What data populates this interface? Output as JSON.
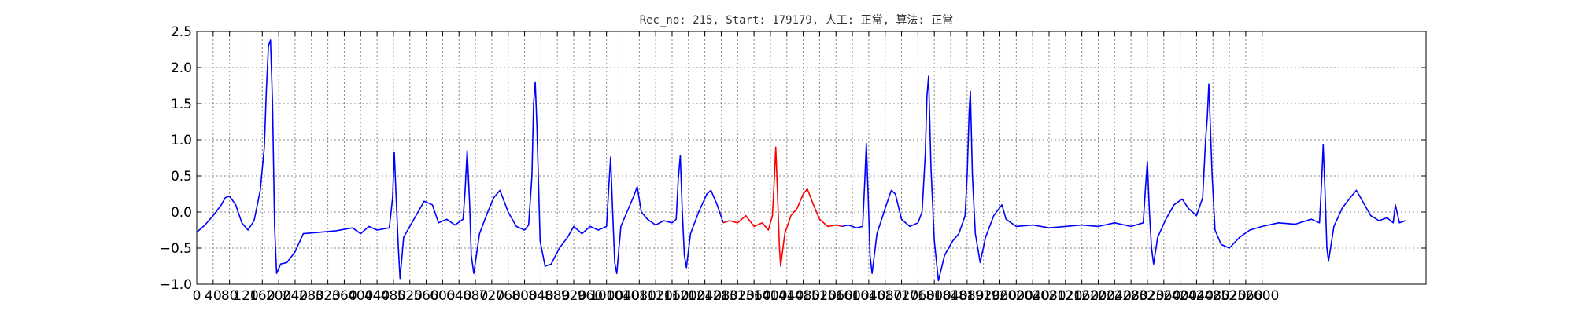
{
  "chart_data": {
    "type": "line",
    "title": "Rec_no: 215, Start: 179179, 人工: 正常, 算法: 正常",
    "xlabel": "",
    "ylabel": "",
    "xlim": [
      0,
      3000
    ],
    "ylim": [
      -1.0,
      2.5
    ],
    "grid": true,
    "yticks": [
      2.5,
      2.0,
      1.5,
      1.0,
      0.5,
      0.0,
      -0.5,
      -1.0
    ],
    "ytick_labels": [
      "2.5",
      "2.0",
      "1.5",
      "1.0",
      "0.5",
      "0.0",
      "−0.5",
      "−1.0"
    ],
    "xticks": [
      0,
      40,
      80,
      120,
      160,
      200,
      240,
      280,
      320,
      360,
      400,
      440,
      480,
      520,
      560,
      600,
      640,
      680,
      720,
      760,
      800,
      840,
      880,
      920,
      960,
      1000,
      1040,
      1080,
      1120,
      1160,
      1200,
      1240,
      1280,
      1320,
      1360,
      1400,
      1440,
      1480,
      1520,
      1560,
      1600,
      1640,
      1680,
      1720,
      1760,
      1800,
      1840,
      1880,
      1920,
      1960,
      2000,
      2040,
      2080,
      2120,
      2160,
      2200,
      2240,
      2280,
      2320,
      2360,
      2400,
      2440,
      2480,
      2520,
      2560,
      2600
    ],
    "series": [
      {
        "color": "#0000ff",
        "points": [
          [
            0,
            -0.28
          ],
          [
            20,
            -0.18
          ],
          [
            40,
            -0.05
          ],
          [
            60,
            0.1
          ],
          [
            70,
            0.2
          ],
          [
            80,
            0.22
          ],
          [
            95,
            0.1
          ],
          [
            110,
            -0.15
          ],
          [
            125,
            -0.25
          ],
          [
            140,
            -0.12
          ],
          [
            155,
            0.3
          ],
          [
            165,
            0.9
          ],
          [
            170,
            1.7
          ],
          [
            175,
            2.3
          ],
          [
            180,
            2.38
          ],
          [
            185,
            1.5
          ],
          [
            190,
            -0.2
          ],
          [
            195,
            -0.85
          ],
          [
            205,
            -0.72
          ],
          [
            220,
            -0.7
          ],
          [
            240,
            -0.55
          ],
          [
            260,
            -0.3
          ],
          [
            300,
            -0.28
          ],
          [
            340,
            -0.26
          ],
          [
            380,
            -0.22
          ],
          [
            400,
            -0.3
          ],
          [
            420,
            -0.2
          ],
          [
            440,
            -0.25
          ],
          [
            470,
            -0.22
          ],
          [
            478,
            0.2
          ],
          [
            482,
            0.83
          ],
          [
            486,
            0.3
          ],
          [
            492,
            -0.5
          ],
          [
            496,
            -0.92
          ],
          [
            505,
            -0.35
          ],
          [
            520,
            -0.2
          ],
          [
            540,
            0.0
          ],
          [
            555,
            0.15
          ],
          [
            575,
            0.1
          ],
          [
            590,
            -0.15
          ],
          [
            610,
            -0.1
          ],
          [
            630,
            -0.18
          ],
          [
            650,
            -0.1
          ],
          [
            655,
            0.3
          ],
          [
            660,
            0.85
          ],
          [
            666,
            0.1
          ],
          [
            670,
            -0.6
          ],
          [
            676,
            -0.85
          ],
          [
            690,
            -0.3
          ],
          [
            710,
            0.0
          ],
          [
            725,
            0.2
          ],
          [
            740,
            0.3
          ],
          [
            760,
            0.0
          ],
          [
            780,
            -0.2
          ],
          [
            800,
            -0.25
          ],
          [
            810,
            -0.18
          ],
          [
            818,
            0.5
          ],
          [
            822,
            1.5
          ],
          [
            826,
            1.8
          ],
          [
            830,
            1.2
          ],
          [
            838,
            -0.4
          ],
          [
            850,
            -0.75
          ],
          [
            865,
            -0.72
          ],
          [
            885,
            -0.5
          ],
          [
            905,
            -0.35
          ],
          [
            920,
            -0.2
          ],
          [
            940,
            -0.3
          ],
          [
            960,
            -0.2
          ],
          [
            980,
            -0.25
          ],
          [
            1000,
            -0.2
          ],
          [
            1005,
            0.3
          ],
          [
            1010,
            0.76
          ],
          [
            1015,
            0.0
          ],
          [
            1020,
            -0.7
          ],
          [
            1025,
            -0.85
          ],
          [
            1035,
            -0.2
          ],
          [
            1050,
            0.0
          ],
          [
            1065,
            0.2
          ],
          [
            1075,
            0.35
          ],
          [
            1085,
            0.0
          ],
          [
            1100,
            -0.1
          ],
          [
            1120,
            -0.18
          ],
          [
            1140,
            -0.12
          ],
          [
            1160,
            -0.15
          ],
          [
            1170,
            -0.1
          ],
          [
            1175,
            0.45
          ],
          [
            1180,
            0.78
          ],
          [
            1185,
            0.0
          ],
          [
            1190,
            -0.6
          ],
          [
            1195,
            -0.77
          ],
          [
            1205,
            -0.3
          ],
          [
            1225,
            0.0
          ],
          [
            1245,
            0.25
          ],
          [
            1255,
            0.3
          ],
          [
            1270,
            0.1
          ],
          [
            1285,
            -0.15
          ]
        ]
      },
      {
        "color": "#ff0000",
        "points": [
          [
            1285,
            -0.15
          ],
          [
            1300,
            -0.12
          ],
          [
            1320,
            -0.15
          ],
          [
            1340,
            -0.05
          ],
          [
            1360,
            -0.2
          ],
          [
            1380,
            -0.15
          ],
          [
            1395,
            -0.25
          ],
          [
            1405,
            -0.05
          ],
          [
            1410,
            0.5
          ],
          [
            1413,
            0.9
          ],
          [
            1417,
            0.3
          ],
          [
            1422,
            -0.5
          ],
          [
            1425,
            -0.75
          ],
          [
            1435,
            -0.3
          ],
          [
            1450,
            -0.05
          ],
          [
            1465,
            0.05
          ],
          [
            1480,
            0.25
          ],
          [
            1490,
            0.32
          ],
          [
            1505,
            0.1
          ],
          [
            1520,
            -0.1
          ],
          [
            1540,
            -0.2
          ],
          [
            1560,
            -0.18
          ],
          [
            1575,
            -0.2
          ]
        ]
      },
      {
        "color": "#0000ff",
        "points": [
          [
            1575,
            -0.2
          ],
          [
            1590,
            -0.18
          ],
          [
            1610,
            -0.22
          ],
          [
            1625,
            -0.2
          ],
          [
            1630,
            0.4
          ],
          [
            1634,
            0.95
          ],
          [
            1638,
            0.3
          ],
          [
            1643,
            -0.6
          ],
          [
            1648,
            -0.85
          ],
          [
            1660,
            -0.3
          ],
          [
            1680,
            0.05
          ],
          [
            1695,
            0.3
          ],
          [
            1705,
            0.25
          ],
          [
            1720,
            -0.1
          ],
          [
            1740,
            -0.2
          ],
          [
            1760,
            -0.15
          ],
          [
            1770,
            0.0
          ],
          [
            1778,
            0.8
          ],
          [
            1782,
            1.6
          ],
          [
            1786,
            1.88
          ],
          [
            1792,
            0.6
          ],
          [
            1800,
            -0.4
          ],
          [
            1810,
            -0.95
          ],
          [
            1825,
            -0.6
          ],
          [
            1845,
            -0.4
          ],
          [
            1860,
            -0.3
          ],
          [
            1875,
            -0.05
          ],
          [
            1880,
            0.5
          ],
          [
            1885,
            1.4
          ],
          [
            1888,
            1.67
          ],
          [
            1893,
            0.5
          ],
          [
            1900,
            -0.3
          ],
          [
            1912,
            -0.7
          ],
          [
            1925,
            -0.35
          ],
          [
            1945,
            -0.05
          ],
          [
            1965,
            0.1
          ],
          [
            1975,
            -0.1
          ],
          [
            2000,
            -0.2
          ],
          [
            2040,
            -0.18
          ],
          [
            2080,
            -0.22
          ],
          [
            2120,
            -0.2
          ],
          [
            2160,
            -0.18
          ],
          [
            2200,
            -0.2
          ],
          [
            2240,
            -0.15
          ],
          [
            2280,
            -0.2
          ],
          [
            2310,
            -0.15
          ],
          [
            2315,
            0.3
          ],
          [
            2320,
            0.7
          ],
          [
            2325,
            0.0
          ],
          [
            2330,
            -0.5
          ],
          [
            2335,
            -0.72
          ],
          [
            2345,
            -0.35
          ],
          [
            2365,
            -0.1
          ],
          [
            2385,
            0.1
          ],
          [
            2405,
            0.18
          ],
          [
            2420,
            0.05
          ],
          [
            2440,
            -0.05
          ],
          [
            2455,
            0.2
          ],
          [
            2462,
            1.0
          ],
          [
            2466,
            1.3
          ],
          [
            2470,
            1.77
          ],
          [
            2478,
            0.5
          ],
          [
            2485,
            -0.25
          ],
          [
            2500,
            -0.45
          ],
          [
            2520,
            -0.5
          ],
          [
            2545,
            -0.35
          ],
          [
            2570,
            -0.25
          ],
          [
            2600,
            -0.2
          ],
          [
            2640,
            -0.15
          ],
          [
            2680,
            -0.17
          ],
          [
            2720,
            -0.1
          ],
          [
            2740,
            -0.15
          ],
          [
            2745,
            0.4
          ],
          [
            2749,
            0.93
          ],
          [
            2754,
            0.2
          ],
          [
            2758,
            -0.5
          ],
          [
            2762,
            -0.68
          ],
          [
            2775,
            -0.2
          ],
          [
            2795,
            0.05
          ],
          [
            2815,
            0.2
          ],
          [
            2830,
            0.3
          ],
          [
            2845,
            0.15
          ],
          [
            2865,
            -0.05
          ],
          [
            2885,
            -0.12
          ],
          [
            2905,
            -0.08
          ],
          [
            2920,
            -0.15
          ],
          [
            2925,
            0.1
          ],
          [
            2935,
            -0.15
          ],
          [
            2950,
            -0.12
          ]
        ]
      }
    ]
  }
}
